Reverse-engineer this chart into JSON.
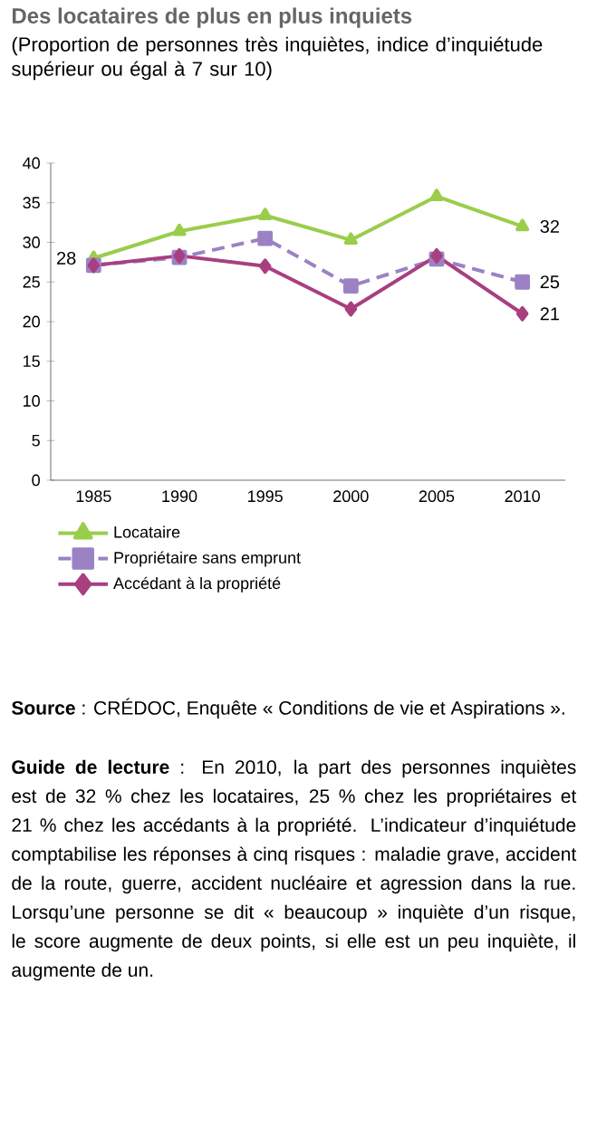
{
  "chart_data": {
    "type": "line",
    "title": "Des locataires de plus en plus inquiets",
    "subtitle": "(Proportion de personnes très inquiètes, indice d’inquiétude supérieur ou égal à 7 sur 10)",
    "categories": [
      "1985",
      "1990",
      "1995",
      "2000",
      "2005",
      "2010"
    ],
    "series": [
      {
        "name": "Locataire",
        "color": "#9acd4a",
        "marker": "triangle",
        "line_style": "solid",
        "values": [
          28,
          31.4,
          33.4,
          30.3,
          35.8,
          32
        ],
        "value_labels": [
          "28",
          null,
          null,
          null,
          null,
          "32"
        ]
      },
      {
        "name": "Propriétaire sans emprunt",
        "color": "#9b82c4",
        "marker": "square",
        "line_style": "dashed",
        "values": [
          27.1,
          28.1,
          30.5,
          24.5,
          27.9,
          25
        ],
        "value_labels": [
          null,
          null,
          null,
          null,
          null,
          "25"
        ]
      },
      {
        "name": "Accédant à la propriété",
        "color": "#a83f80",
        "marker": "diamond",
        "line_style": "solid",
        "values": [
          27.1,
          28.3,
          27,
          21.6,
          28.3,
          21
        ],
        "value_labels": [
          null,
          null,
          null,
          null,
          null,
          "21"
        ]
      }
    ],
    "ylim": [
      0,
      40
    ],
    "yticks": [
      0,
      5,
      10,
      15,
      20,
      25,
      30,
      35,
      40
    ],
    "grid": false,
    "legend": "bottom",
    "annotations": [
      "**Source** : CRÉDOC, Enquête « Conditions de vie et Aspirations ».",
      "**Guide de lecture** : En 2010, la part des personnes inquiètes est de 32 % chez les locataires, 25 % chez les propriétaires et 21 % chez les accédants à la propriété. L’indicateur d’inquiétude comptabilise les réponses à cinq risques : maladie grave, accident de la route, guerre, accident nucléaire et agression dans la rue. Lorsqu’une personne se dit « beaucoup » inquiète d’un risque, le score augmente de deux points, si elle est un peu inquiète, il augmente de un."
    ]
  }
}
